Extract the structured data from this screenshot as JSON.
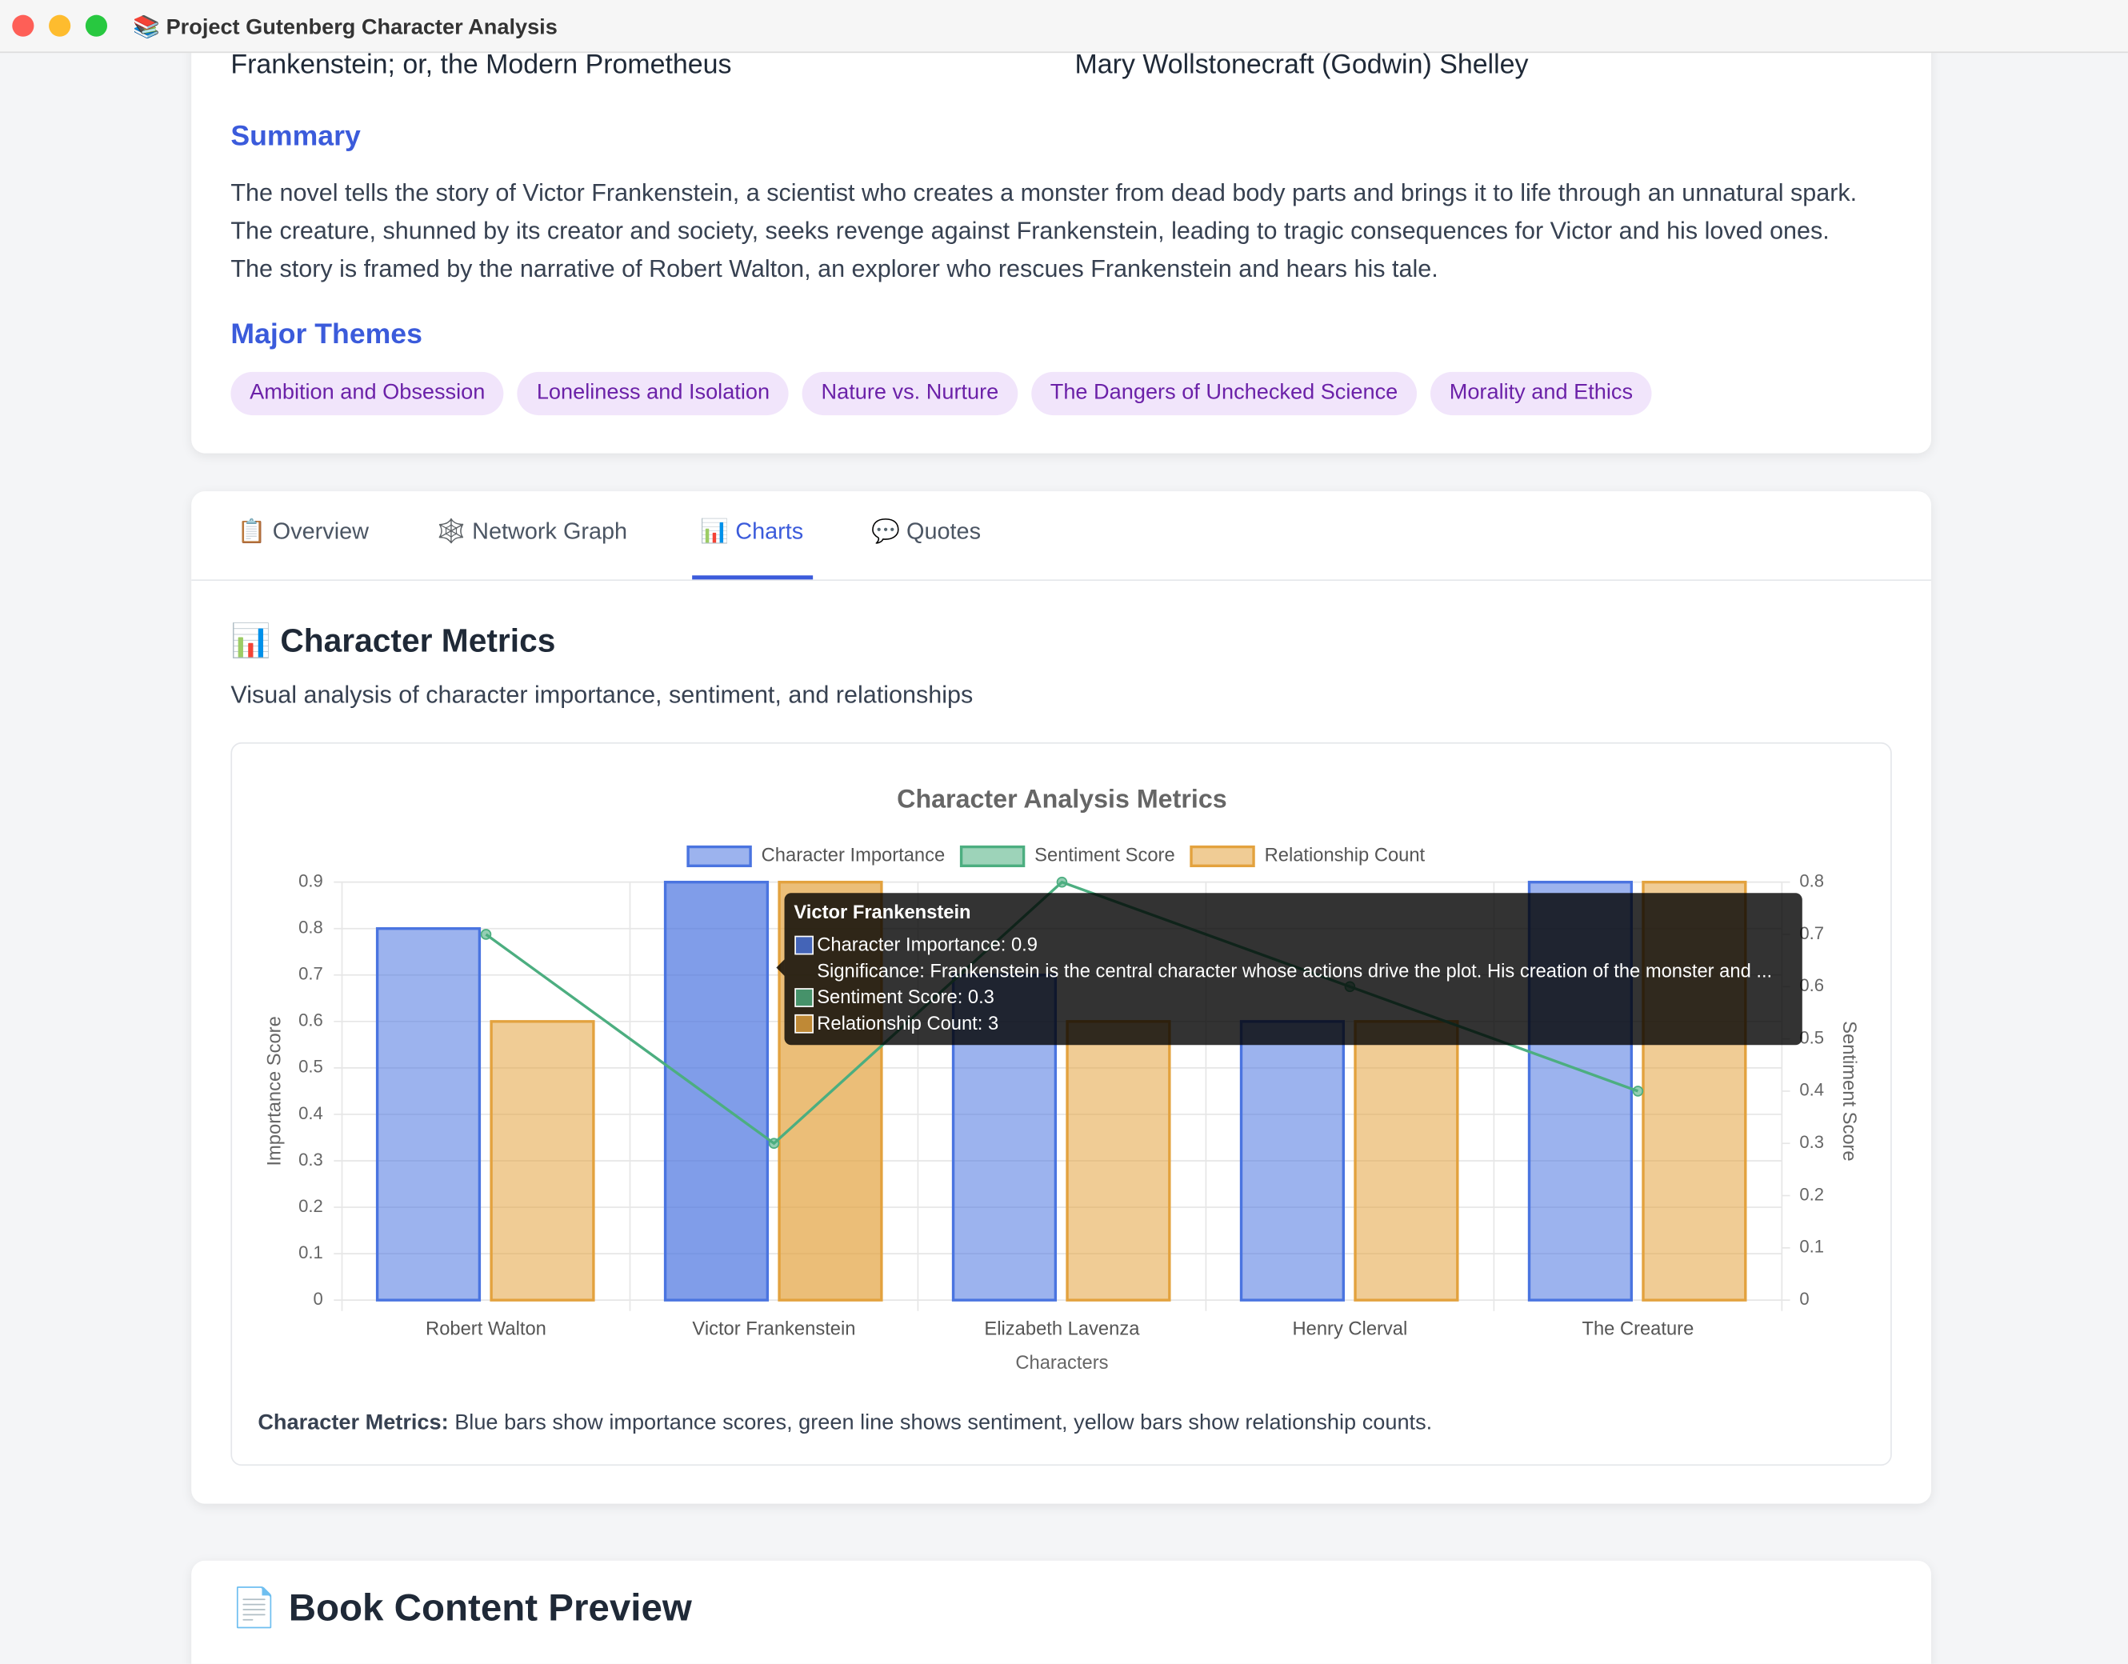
{
  "window": {
    "title": "📚 Project Gutenberg Character Analysis"
  },
  "book": {
    "title": "Frankenstein; or, the Modern Prometheus",
    "author": "Mary Wollstonecraft (Godwin) Shelley",
    "summary_heading": "Summary",
    "summary": "The novel tells the story of Victor Frankenstein, a scientist who creates a monster from dead body parts and brings it to life through an unnatural spark. The creature, shunned by its creator and society, seeks revenge against Frankenstein, leading to tragic consequences for Victor and his loved ones. The story is framed by the narrative of Robert Walton, an explorer who rescues Frankenstein and hears his tale.",
    "themes_heading": "Major Themes",
    "themes": [
      "Ambition and Obsession",
      "Loneliness and Isolation",
      "Nature vs. Nurture",
      "The Dangers of Unchecked Science",
      "Morality and Ethics"
    ]
  },
  "tabs": [
    "📋 Overview",
    "🕸️ Network Graph",
    "📊 Charts",
    "💬 Quotes"
  ],
  "section": {
    "heading": "📊 Character Metrics",
    "subtitle": "Visual analysis of character importance, sentiment, and relationships",
    "note_label": "Character Metrics:",
    "note": " Blue bars show importance scores, green line shows sentiment, yellow bars show relationship counts."
  },
  "chart_data": {
    "type": "bar",
    "title": "Character Analysis Metrics",
    "categories": [
      "Robert Walton",
      "Victor Frankenstein",
      "Elizabeth Lavenza",
      "Henry Clerval",
      "The Creature"
    ],
    "x_label": "Characters",
    "y_label": "Importance Score",
    "y2_label": "Sentiment Score",
    "series": [
      {
        "name": "Character Importance",
        "type": "bar",
        "color": "#4a74e0",
        "values": [
          0.8,
          0.9,
          0.7,
          0.6,
          0.9
        ]
      },
      {
        "name": "Sentiment Score",
        "type": "line",
        "color": "#4cae80",
        "axis": "y2",
        "values": [
          0.7,
          0.3,
          0.8,
          0.6,
          0.4
        ]
      },
      {
        "name": "Relationship Count",
        "type": "bar",
        "color": "#e3a23e",
        "axis": "y3",
        "values": [
          2,
          3,
          2,
          2,
          3
        ]
      }
    ],
    "ylim": [
      0,
      0.9
    ],
    "yticks": [
      0,
      0.1,
      0.2,
      0.3,
      0.4,
      0.5,
      0.6,
      0.7,
      0.8,
      0.9
    ],
    "y2lim": [
      0,
      0.8
    ],
    "y2ticks": [
      0,
      0.1,
      0.2,
      0.3,
      0.4,
      0.5,
      0.6,
      0.7,
      0.8
    ],
    "y3lim": [
      0,
      3
    ],
    "grid": true,
    "legend": "top",
    "tooltip": {
      "title": "Victor Frankenstein",
      "lines": [
        "Character Importance: 0.9",
        "Significance: Frankenstein is the central character whose actions drive the plot. His creation of the monster and ...",
        "Sentiment Score: 0.3",
        "Relationship Count: 3"
      ]
    }
  },
  "preview": {
    "heading": "📄 Book Content Preview"
  }
}
